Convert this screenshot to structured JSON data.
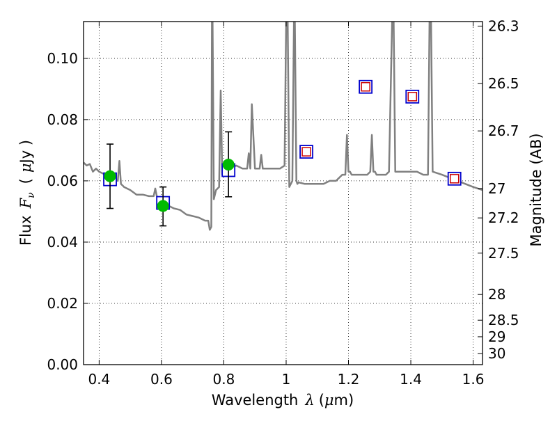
{
  "chart_data": {
    "type": "line",
    "xlabel": {
      "prefix": "Wavelength",
      "symbol": "λ",
      "unit_open": "(",
      "unit_mu": "μ",
      "unit_rest": "m)"
    },
    "ylabel": {
      "prefix": "Flux",
      "symbol": "F",
      "subscript": "ν",
      "unit_open": "(",
      "unit_mu": "μ",
      "unit_rest": "Jy )"
    },
    "y2label": "Magnitude (AB)",
    "xlim": [
      0.35,
      1.63
    ],
    "ylim": [
      0.0,
      0.112
    ],
    "grid": true,
    "xticks": [
      {
        "value": 0.4,
        "label": "0.4"
      },
      {
        "value": 0.6,
        "label": "0.6"
      },
      {
        "value": 0.8,
        "label": "0.8"
      },
      {
        "value": 1.0,
        "label": "1"
      },
      {
        "value": 1.2,
        "label": "1.2"
      },
      {
        "value": 1.4,
        "label": "1.4"
      },
      {
        "value": 1.6,
        "label": "1.6"
      }
    ],
    "yticks": [
      {
        "value": 0.0,
        "label": "0.00"
      },
      {
        "value": 0.02,
        "label": "0.02"
      },
      {
        "value": 0.04,
        "label": "0.04"
      },
      {
        "value": 0.06,
        "label": "0.06"
      },
      {
        "value": 0.08,
        "label": "0.08"
      },
      {
        "value": 0.1,
        "label": "0.10"
      }
    ],
    "y2ticks": [
      {
        "flux": 0.1105,
        "label": "26.3"
      },
      {
        "flux": 0.0918,
        "label": "26.5"
      },
      {
        "flux": 0.0763,
        "label": "26.7"
      },
      {
        "flux": 0.0575,
        "label": "27"
      },
      {
        "flux": 0.0479,
        "label": "27.2"
      },
      {
        "flux": 0.0364,
        "label": "27.5"
      },
      {
        "flux": 0.0229,
        "label": "28"
      },
      {
        "flux": 0.0145,
        "label": "28.5"
      },
      {
        "flux": 0.0091,
        "label": "29"
      },
      {
        "flux": 0.0036,
        "label": "30"
      }
    ],
    "series": [
      {
        "kind": "spectrum",
        "color": "#808080",
        "x": [
          0.35,
          0.36,
          0.37,
          0.38,
          0.39,
          0.4,
          0.41,
          0.42,
          0.43,
          0.44,
          0.45,
          0.46,
          0.465,
          0.47,
          0.475,
          0.48,
          0.5,
          0.52,
          0.54,
          0.56,
          0.575,
          0.58,
          0.585,
          0.6,
          0.62,
          0.64,
          0.66,
          0.68,
          0.7,
          0.72,
          0.74,
          0.75,
          0.755,
          0.76,
          0.762,
          0.764,
          0.766,
          0.768,
          0.775,
          0.785,
          0.79,
          0.795,
          0.8,
          0.81,
          0.82,
          0.84,
          0.86,
          0.875,
          0.88,
          0.885,
          0.89,
          0.9,
          0.915,
          0.92,
          0.925,
          0.94,
          0.96,
          0.98,
          0.995,
          1.0,
          1.005,
          1.01,
          1.02,
          1.025,
          1.028,
          1.033,
          1.036,
          1.04,
          1.06,
          1.08,
          1.1,
          1.12,
          1.14,
          1.16,
          1.18,
          1.19,
          1.195,
          1.2,
          1.205,
          1.21,
          1.22,
          1.24,
          1.26,
          1.27,
          1.275,
          1.28,
          1.285,
          1.29,
          1.3,
          1.32,
          1.33,
          1.34,
          1.345,
          1.35,
          1.4,
          1.42,
          1.44,
          1.455,
          1.46,
          1.465,
          1.47,
          1.5,
          1.55,
          1.6,
          1.63
        ],
        "y": [
          0.066,
          0.065,
          0.0655,
          0.063,
          0.064,
          0.063,
          0.0625,
          0.062,
          0.061,
          0.0605,
          0.0605,
          0.06,
          0.0665,
          0.059,
          0.0585,
          0.058,
          0.057,
          0.0555,
          0.0555,
          0.055,
          0.055,
          0.0575,
          0.055,
          0.0535,
          0.052,
          0.051,
          0.0505,
          0.049,
          0.0485,
          0.048,
          0.047,
          0.047,
          0.044,
          0.045,
          0.112,
          0.112,
          0.085,
          0.054,
          0.057,
          0.058,
          0.0895,
          0.062,
          0.063,
          0.064,
          0.064,
          0.065,
          0.064,
          0.064,
          0.069,
          0.064,
          0.085,
          0.064,
          0.064,
          0.0685,
          0.064,
          0.064,
          0.064,
          0.064,
          0.065,
          0.112,
          0.112,
          0.058,
          0.06,
          0.112,
          0.112,
          0.06,
          0.059,
          0.0595,
          0.059,
          0.059,
          0.059,
          0.059,
          0.06,
          0.06,
          0.062,
          0.062,
          0.075,
          0.063,
          0.063,
          0.062,
          0.062,
          0.062,
          0.062,
          0.063,
          0.075,
          0.063,
          0.063,
          0.062,
          0.062,
          0.062,
          0.063,
          0.112,
          0.112,
          0.063,
          0.063,
          0.063,
          0.062,
          0.062,
          0.112,
          0.112,
          0.063,
          0.062,
          0.06,
          0.058,
          0.057
        ]
      },
      {
        "kind": "model_photometry",
        "marker": "square",
        "color": "#0000cc",
        "x": [
          0.435,
          0.605,
          0.815,
          1.065,
          1.255,
          1.405,
          1.54
        ],
        "y": [
          0.0605,
          0.0528,
          0.0635,
          0.0695,
          0.0907,
          0.0875,
          0.0607
        ]
      },
      {
        "kind": "model_photometry_inner",
        "marker": "square",
        "color": "#cc0000",
        "x": [
          1.065,
          1.255,
          1.405,
          1.54
        ],
        "y": [
          0.0695,
          0.0907,
          0.0875,
          0.0607
        ]
      },
      {
        "kind": "observed",
        "marker": "circle",
        "color": "#00bb00",
        "x": [
          0.435,
          0.605,
          0.815
        ],
        "y": [
          0.0615,
          0.0518,
          0.0653
        ],
        "err_low": [
          0.0105,
          0.0065,
          0.0105
        ],
        "err_high": [
          0.0105,
          0.0062,
          0.0107
        ]
      }
    ]
  }
}
